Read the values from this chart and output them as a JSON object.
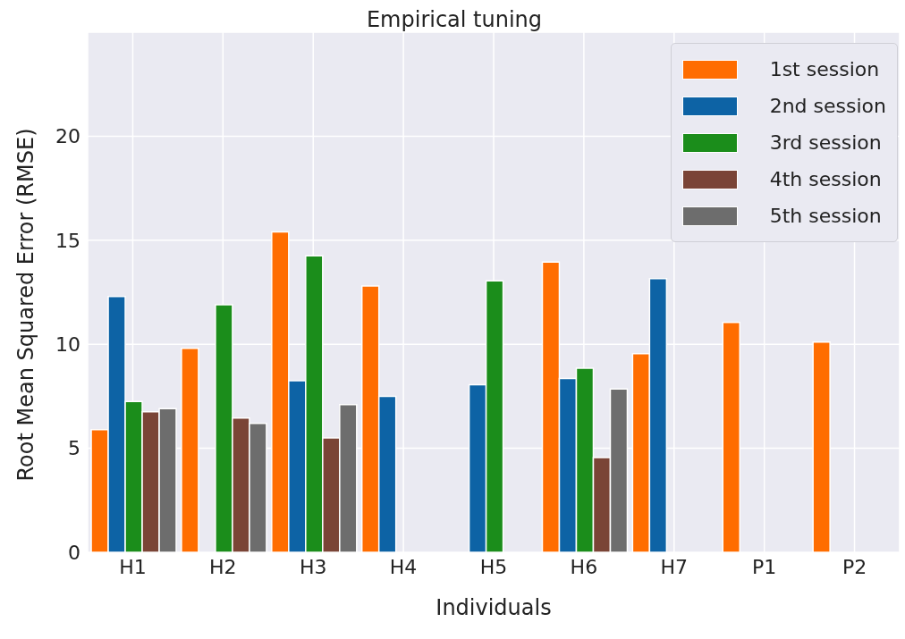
{
  "chart_data": {
    "type": "bar",
    "title": "Empirical tuning",
    "xlabel": "Individuals",
    "ylabel": "Root Mean Squared Error (RMSE)",
    "categories": [
      "H1",
      "H2",
      "H3",
      "H4",
      "H5",
      "H6",
      "H7",
      "P1",
      "P2"
    ],
    "series": [
      {
        "name": "1st session",
        "color": "#ff6d00",
        "values": [
          5.9,
          9.8,
          15.4,
          12.8,
          null,
          13.95,
          9.55,
          11.05,
          10.1
        ]
      },
      {
        "name": "2nd session",
        "color": "#0d63a5",
        "values": [
          12.3,
          null,
          8.25,
          7.5,
          8.05,
          8.35,
          13.15,
          null,
          null
        ]
      },
      {
        "name": "3rd session",
        "color": "#1b8d1b",
        "values": [
          7.25,
          11.9,
          14.25,
          null,
          13.05,
          8.85,
          null,
          null,
          null
        ]
      },
      {
        "name": "4th session",
        "color": "#7a4436",
        "values": [
          6.75,
          6.45,
          5.5,
          null,
          null,
          4.55,
          null,
          null,
          null
        ]
      },
      {
        "name": "5th session",
        "color": "#6d6d6d",
        "values": [
          6.9,
          6.2,
          7.1,
          null,
          null,
          7.85,
          null,
          null,
          null
        ]
      }
    ],
    "ylim": [
      0,
      25
    ],
    "yticks": [
      0,
      5,
      10,
      15,
      20
    ],
    "grid": true,
    "legend": "top right"
  }
}
